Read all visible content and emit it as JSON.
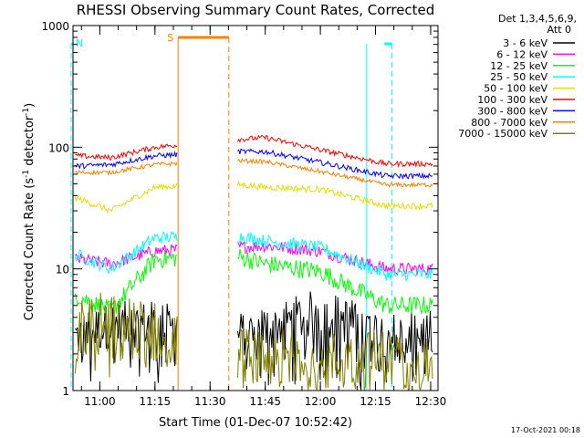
{
  "chart_data": {
    "type": "line",
    "title": "RHESSI Observing Summary Count Rates, Corrected",
    "xlabel": "Start Time (01-Dec-07 10:52:42)",
    "ylabel_main": "Corrected Count Rate (s",
    "ylabel_sup1": "-1",
    "ylabel_mid": " detector",
    "ylabel_sup2": "-1",
    "ylabel_end": ")",
    "y_scale": "log",
    "xlim": [
      "10:52:42",
      "12:32:00"
    ],
    "ylim": [
      1,
      1000
    ],
    "x_ticks": [
      "11:00",
      "11:15",
      "11:30",
      "11:45",
      "12:00",
      "12:15",
      "12:30"
    ],
    "y_ticks": [
      {
        "label": "1",
        "value": 1
      },
      {
        "label": "10",
        "value": 10
      },
      {
        "label": "100",
        "value": 100
      },
      {
        "label": "1000",
        "value": 1000
      }
    ],
    "legend_title_1": "Det 1,3,4,5,6,9,",
    "legend_title_2": "Att 0",
    "series": [
      {
        "name": "3 - 6 keV",
        "color": "#000000",
        "values": [
          [
            10.9,
            2.8
          ],
          [
            11.05,
            3.5
          ],
          [
            11.25,
            3.5
          ],
          [
            11.6,
            2.8
          ],
          [
            11.75,
            3.2
          ],
          [
            12.0,
            4.5
          ],
          [
            12.3,
            2.9
          ]
        ]
      },
      {
        "name": "6 - 12 keV",
        "color": "#ff00ff",
        "values": [
          [
            10.9,
            12
          ],
          [
            11.05,
            11
          ],
          [
            11.25,
            14
          ],
          [
            11.6,
            15
          ],
          [
            11.75,
            15.5
          ],
          [
            12.0,
            14
          ],
          [
            12.3,
            10
          ]
        ]
      },
      {
        "name": "12 - 25 keV",
        "color": "#00ff00",
        "values": [
          [
            10.9,
            6
          ],
          [
            11.05,
            4.5
          ],
          [
            11.25,
            12
          ],
          [
            11.6,
            13
          ],
          [
            11.75,
            11
          ],
          [
            12.0,
            9.5
          ],
          [
            12.3,
            5
          ]
        ]
      },
      {
        "name": "25 - 50 keV",
        "color": "#00ffff",
        "values": [
          [
            10.9,
            13
          ],
          [
            11.05,
            10
          ],
          [
            11.25,
            18
          ],
          [
            11.6,
            19
          ],
          [
            11.75,
            17
          ],
          [
            12.0,
            15
          ],
          [
            12.3,
            9
          ]
        ]
      },
      {
        "name": "50 - 100 keV",
        "color": "#e0e000",
        "values": [
          [
            10.9,
            38
          ],
          [
            11.05,
            30
          ],
          [
            11.25,
            47
          ],
          [
            11.6,
            50
          ],
          [
            11.75,
            47
          ],
          [
            12.0,
            45
          ],
          [
            12.3,
            33
          ]
        ]
      },
      {
        "name": "100 - 300 keV",
        "color": "#ff0000",
        "values": [
          [
            10.9,
            85
          ],
          [
            11.05,
            82
          ],
          [
            11.25,
            100
          ],
          [
            11.6,
            115
          ],
          [
            11.75,
            120
          ],
          [
            12.0,
            95
          ],
          [
            12.3,
            73
          ]
        ]
      },
      {
        "name": "300 - 800 keV",
        "color": "#0000ff",
        "values": [
          [
            10.9,
            70
          ],
          [
            11.05,
            72
          ],
          [
            11.25,
            85
          ],
          [
            11.6,
            92
          ],
          [
            11.75,
            92
          ],
          [
            12.0,
            75
          ],
          [
            12.3,
            58
          ]
        ]
      },
      {
        "name": "800 - 7000 keV",
        "color": "#ff8000",
        "values": [
          [
            10.9,
            62
          ],
          [
            11.05,
            62
          ],
          [
            11.25,
            72
          ],
          [
            11.6,
            78
          ],
          [
            11.75,
            76
          ],
          [
            12.0,
            63
          ],
          [
            12.3,
            49
          ]
        ]
      },
      {
        "name": "7000 - 15000 keV",
        "color": "#808000",
        "values": [
          [
            10.9,
            3.8
          ],
          [
            11.05,
            3.5
          ],
          [
            11.25,
            3.0
          ],
          [
            11.6,
            1.8
          ],
          [
            11.75,
            1.9
          ],
          [
            12.0,
            1.7
          ],
          [
            12.3,
            1.8
          ]
        ]
      }
    ],
    "annotations": [
      {
        "label": "N",
        "color": "#00ffff"
      },
      {
        "label": "S",
        "color": "#ff8000"
      }
    ],
    "timestamp": "17-Oct-2021 00:18"
  }
}
